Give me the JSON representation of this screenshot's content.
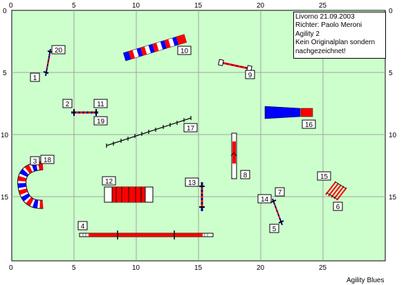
{
  "grid": {
    "x_ticks": [
      "0",
      "5",
      "10",
      "15",
      "20",
      "25"
    ],
    "y_ticks": [
      "0",
      "5",
      "10",
      "15"
    ]
  },
  "info": {
    "line1": "Livorno 21.09.2003",
    "line2": "Richter: Paolo Meroni",
    "line3": "Agility 2",
    "line4": "Kein Originalplan sondern",
    "line5": "nachgezeichnet!"
  },
  "credit": "Agility Blues",
  "numbers": [
    "1",
    "2",
    "3",
    "4",
    "5",
    "6",
    "7",
    "8",
    "9",
    "10",
    "11",
    "12",
    "13",
    "14",
    "15",
    "16",
    "17",
    "18",
    "19",
    "20"
  ],
  "colors": {
    "field": "#ccffcc",
    "grid_line": "#a0a0a0",
    "red": "#ff0000",
    "blue": "#0000ff",
    "navy": "#000080"
  }
}
